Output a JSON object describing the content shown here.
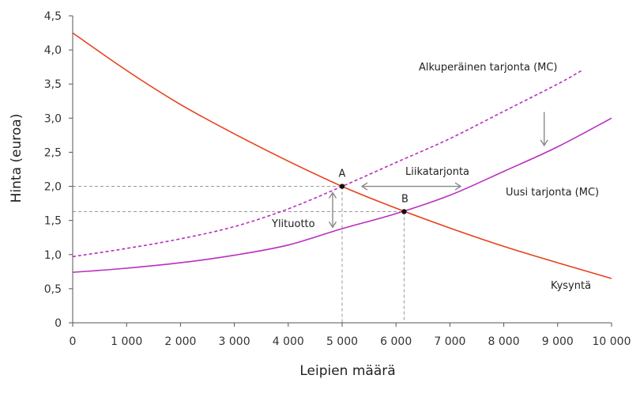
{
  "chart_data": {
    "type": "line",
    "xlabel": "Leipien määrä",
    "ylabel": "Hinta (euroa)",
    "xlim": [
      0,
      10000
    ],
    "ylim": [
      0,
      4.5
    ],
    "x_ticks": [
      "0",
      "1 000",
      "2 000",
      "3 000",
      "4 000",
      "5 000",
      "6 000",
      "7 000",
      "8 000",
      "9 000",
      "10 000"
    ],
    "y_ticks": [
      "0",
      "0,5",
      "1,0",
      "1,5",
      "2,0",
      "2,5",
      "3,0",
      "3,5",
      "4,0",
      "4,5"
    ],
    "series": [
      {
        "name": "Kysyntä",
        "color": "#e8401c",
        "style": "solid",
        "x": [
          0,
          1000,
          2000,
          3000,
          4000,
          5000,
          6000,
          7000,
          8000,
          9000,
          10000
        ],
        "y": [
          4.25,
          3.7,
          3.2,
          2.77,
          2.37,
          2.0,
          1.68,
          1.39,
          1.12,
          0.88,
          0.65
        ]
      },
      {
        "name": "Alkuperäinen tarjonta (MC)",
        "color": "#b82fbf",
        "style": "dashed",
        "x": [
          0,
          1000,
          2000,
          3000,
          4000,
          5000,
          6000,
          7000,
          8000,
          9000,
          9450
        ],
        "y": [
          0.97,
          1.09,
          1.23,
          1.41,
          1.67,
          2.0,
          2.35,
          2.7,
          3.1,
          3.5,
          3.7
        ]
      },
      {
        "name": "Uusi tarjonta (MC)",
        "color": "#b82fbf",
        "style": "solid",
        "x": [
          0,
          1000,
          2000,
          3000,
          4000,
          5000,
          6000,
          7000,
          8000,
          9000,
          10000
        ],
        "y": [
          0.74,
          0.8,
          0.88,
          0.99,
          1.14,
          1.38,
          1.6,
          1.87,
          2.22,
          2.58,
          3.0
        ]
      }
    ],
    "points": [
      {
        "label": "A",
        "x": 5000,
        "y": 2.0
      },
      {
        "label": "B",
        "x": 6150,
        "y": 1.63
      }
    ],
    "annotations": {
      "excess_supply": "Liikatarjonta",
      "overproduction": "Ylituotto",
      "original_supply": "Alkuperäinen tarjonta (MC)",
      "new_supply": "Uusi tarjonta (MC)",
      "demand": "Kysyntä"
    },
    "grid": false,
    "colors": {
      "arrow": "#888888",
      "guide": "#999999",
      "axis": "#555555"
    }
  }
}
